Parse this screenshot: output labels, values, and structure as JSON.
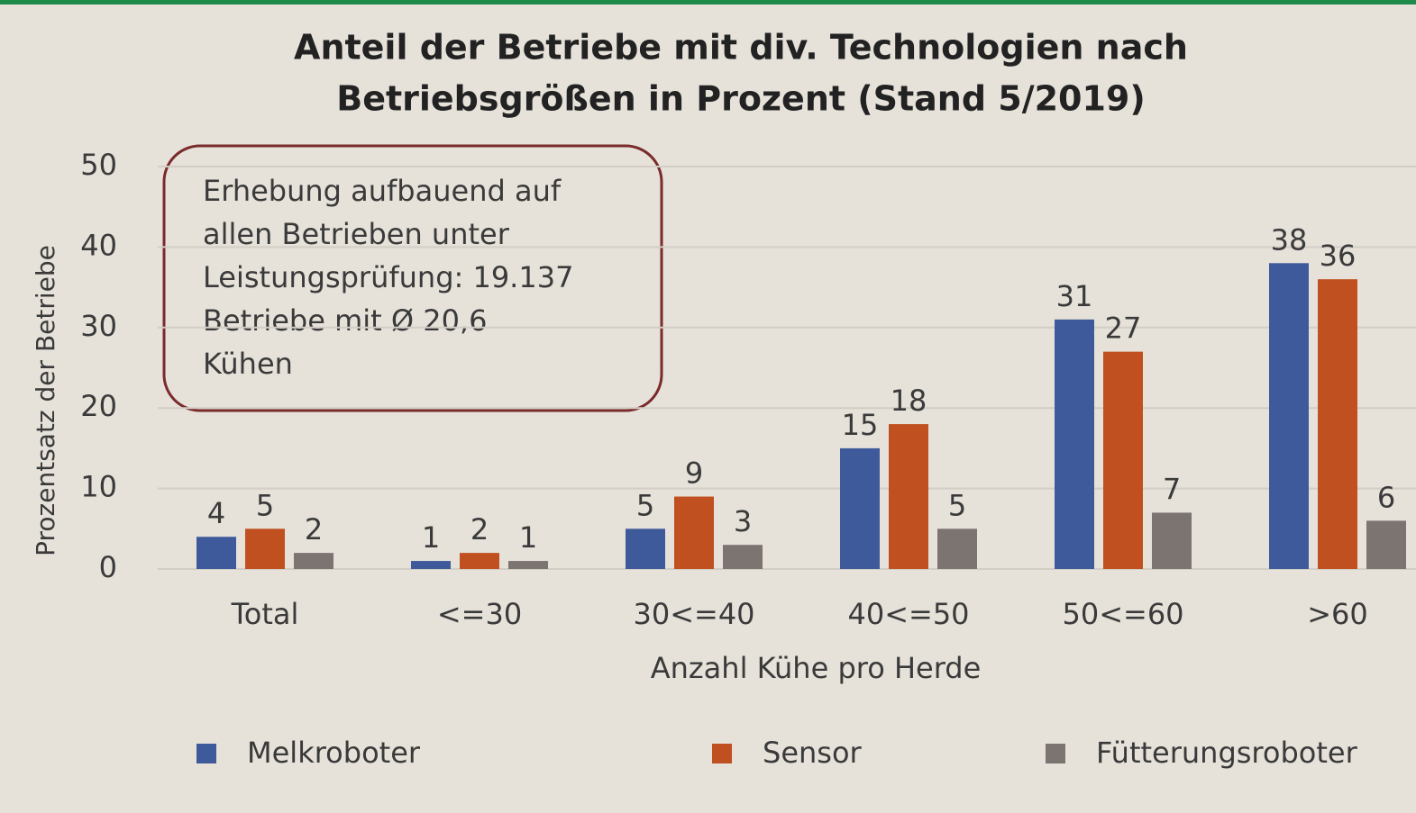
{
  "chart_data": {
    "type": "bar",
    "title": [
      "Anteil der Betriebe mit div. Technologien nach",
      "Betriebsgrößen in Prozent (Stand 5/2019)"
    ],
    "annotation": [
      "Erhebung aufbauend auf",
      "allen Betrieben unter",
      "Leistungsprüfung: 19.137",
      "Betriebe mit Ø 20,6",
      "Kühen"
    ],
    "x_label": "Anzahl Kühe pro Herde",
    "y_label": "Prozentsatz der Betriebe",
    "categories": [
      "Total",
      "<=30",
      "30<=40",
      "40<=50",
      "50<=60",
      ">60"
    ],
    "series": [
      {
        "name": "Melkroboter",
        "color": "#3f5a9a",
        "values": [
          4,
          1,
          5,
          15,
          31,
          38
        ]
      },
      {
        "name": "Sensor",
        "color": "#c0501f",
        "values": [
          5,
          2,
          9,
          18,
          27,
          36
        ]
      },
      {
        "name": "Fütterungsroboter",
        "color": "#7b7470",
        "values": [
          2,
          1,
          3,
          5,
          7,
          6
        ]
      }
    ],
    "ylim": [
      0,
      50
    ],
    "yticks": [
      0,
      10,
      20,
      30,
      40,
      50
    ],
    "grid": true,
    "legend": "bottom"
  }
}
